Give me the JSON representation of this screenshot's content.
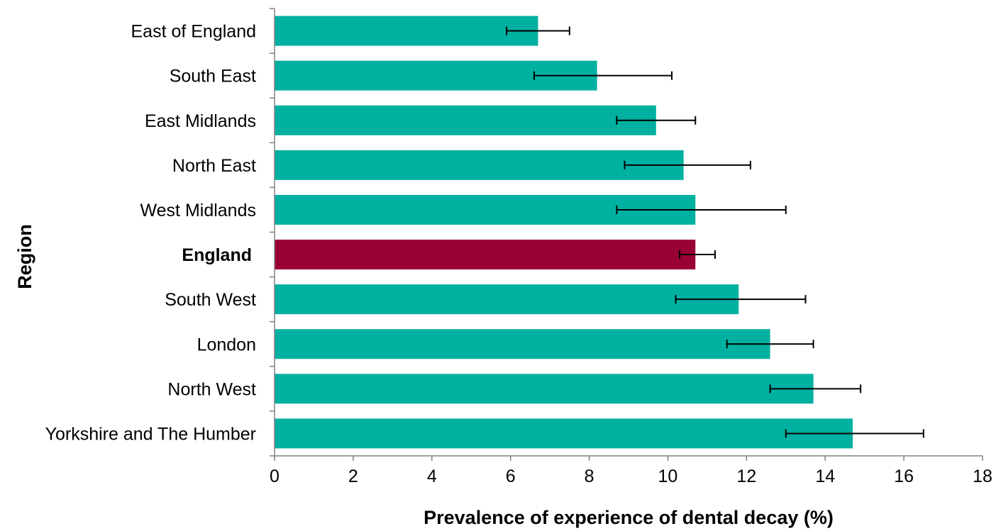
{
  "chart_data": {
    "type": "bar",
    "orientation": "horizontal",
    "xlabel": "Prevalence of experience of dental decay (%)",
    "ylabel": "Region",
    "xlim": [
      0,
      18
    ],
    "x_ticks": [
      "0",
      "2",
      "4",
      "6",
      "8",
      "10",
      "12",
      "14",
      "16",
      "18"
    ],
    "grid": false,
    "legend": "none",
    "colors": {
      "default_bar": "#00B0A0",
      "highlight_bar": "#990033",
      "error_bar": "#000000",
      "axis": "#808080"
    },
    "categories": [
      "East of England",
      "South East",
      "East Midlands",
      "North East",
      "West Midlands",
      "England",
      "South West",
      "London",
      "North West",
      "Yorkshire and The Humber"
    ],
    "values": [
      6.7,
      8.2,
      9.7,
      10.4,
      10.7,
      10.7,
      11.8,
      12.6,
      13.7,
      14.7
    ],
    "error_low": [
      5.9,
      6.6,
      8.7,
      8.9,
      8.7,
      10.3,
      10.2,
      11.5,
      12.6,
      13.0
    ],
    "error_high": [
      7.5,
      10.1,
      10.7,
      12.1,
      13.0,
      11.2,
      13.5,
      13.7,
      14.9,
      16.5
    ],
    "highlight": "England"
  }
}
